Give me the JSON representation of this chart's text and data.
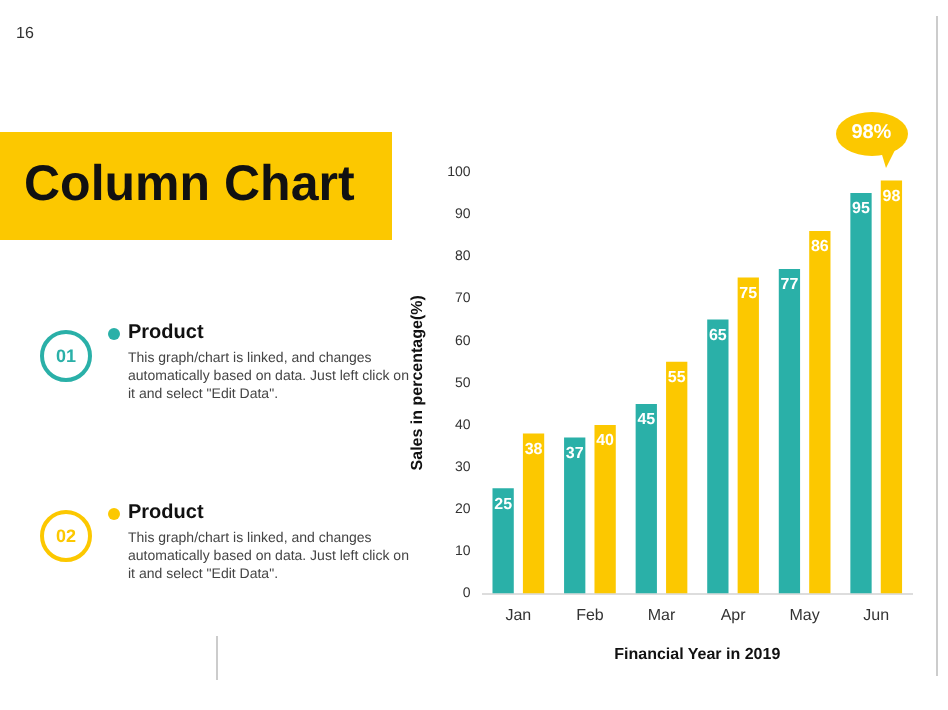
{
  "chart_data": {
    "type": "bar",
    "title": "Column Chart",
    "xlabel": "Financial Year in 2019",
    "ylabel": "Sales in percentage(%)",
    "categories": [
      "Jan",
      "Feb",
      "Mar",
      "Apr",
      "May",
      "Jun"
    ],
    "series": [
      {
        "name": "Product",
        "color": "#2ab0a8",
        "values": [
          25,
          37,
          45,
          65,
          77,
          95
        ]
      },
      {
        "name": "Product",
        "color": "#fcc800",
        "values": [
          38,
          40,
          55,
          75,
          86,
          98
        ]
      }
    ],
    "ylim": [
      0,
      100
    ],
    "yticks": [
      0,
      10,
      20,
      30,
      40,
      50,
      60,
      70,
      80,
      90,
      100
    ],
    "grid": false,
    "data_labels": true,
    "legend": "left",
    "annotations": [
      "16",
      "01",
      "This graph/chart is linked, and changes automatically based on data. Just left click on it and select \"Edit Data\".",
      "02",
      "This graph/chart is linked, and changes automatically based on data. Just left click on it and select \"Edit Data\".",
      {
        "text": "98%",
        "x": "Jun",
        "y": 98
      }
    ]
  }
}
